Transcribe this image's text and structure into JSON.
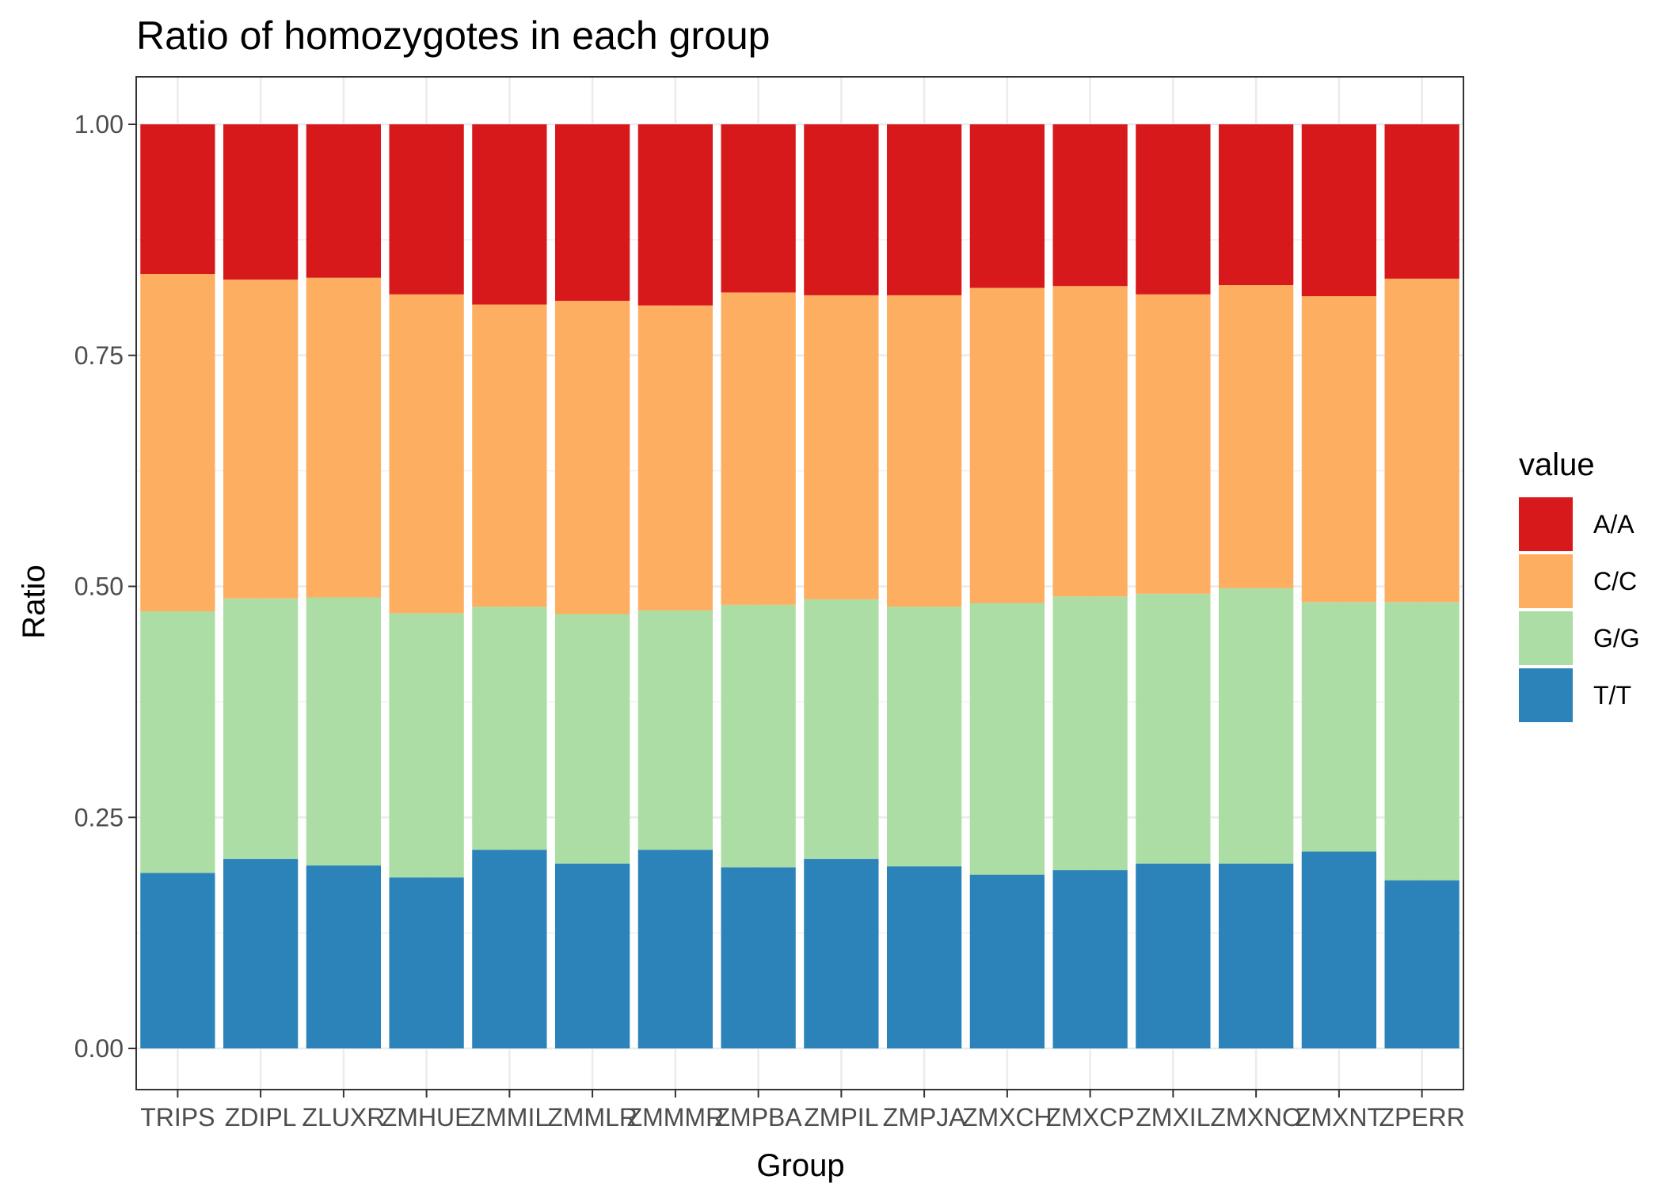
{
  "chart_data": {
    "type": "bar",
    "stacked": true,
    "title": "Ratio of homozygotes in each group",
    "xlabel": "Group",
    "ylabel": "Ratio",
    "ylim": [
      0,
      1
    ],
    "yticks": [
      "0.00",
      "0.25",
      "0.50",
      "0.75",
      "1.00"
    ],
    "grid": true,
    "legend_title": "value",
    "legend_position": "right",
    "categories": [
      "TRIPS",
      "ZDIPL",
      "ZLUXR",
      "ZMHUE",
      "ZMMIL",
      "ZMMLR",
      "ZMMMR",
      "ZMPBA",
      "ZMPIL",
      "ZMPJA",
      "ZMXCH",
      "ZMXCP",
      "ZMXIL",
      "ZMXNO",
      "ZMXNT",
      "ZPERR"
    ],
    "series": [
      {
        "name": "A/A",
        "color": "#d7191c",
        "values": [
          0.162,
          0.168,
          0.166,
          0.184,
          0.195,
          0.191,
          0.196,
          0.182,
          0.185,
          0.185,
          0.177,
          0.175,
          0.184,
          0.174,
          0.186,
          0.167
        ]
      },
      {
        "name": "C/C",
        "color": "#fdae61",
        "values": [
          0.365,
          0.345,
          0.346,
          0.345,
          0.327,
          0.339,
          0.33,
          0.338,
          0.329,
          0.337,
          0.341,
          0.336,
          0.324,
          0.328,
          0.331,
          0.35
        ]
      },
      {
        "name": "G/G",
        "color": "#abdda4",
        "values": [
          0.283,
          0.282,
          0.29,
          0.286,
          0.263,
          0.27,
          0.259,
          0.284,
          0.281,
          0.281,
          0.294,
          0.296,
          0.292,
          0.298,
          0.27,
          0.301
        ]
      },
      {
        "name": "T/T",
        "color": "#2b83ba",
        "values": [
          0.19,
          0.205,
          0.198,
          0.185,
          0.215,
          0.2,
          0.215,
          0.196,
          0.205,
          0.197,
          0.188,
          0.193,
          0.2,
          0.2,
          0.213,
          0.182
        ]
      }
    ]
  }
}
